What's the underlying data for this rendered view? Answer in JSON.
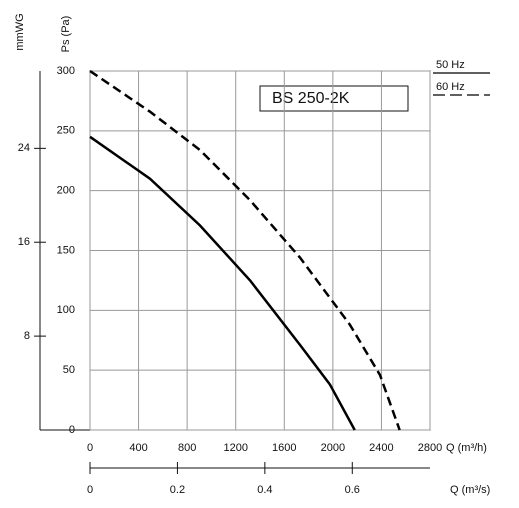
{
  "chart_data": {
    "type": "line",
    "title": "BS 250-2K",
    "y_label": "Ps (Pa)",
    "y2_label": "mmWG",
    "x_label": "Q (m³/h)",
    "x2_label": "Q (m³/s)",
    "series": [
      {
        "name": "50 Hz",
        "color": "#000000",
        "dash": false,
        "x": [
          0,
          494,
          905,
          1318,
          1730,
          1976,
          2180
        ],
        "values": [
          245,
          210,
          171,
          125,
          71,
          38,
          0
        ]
      },
      {
        "name": "60 Hz",
        "color": "#000000",
        "dash": true,
        "x": [
          0,
          494,
          905,
          1318,
          1730,
          2140,
          2388,
          2550
        ],
        "values": [
          300,
          266,
          234,
          192,
          144,
          88,
          46,
          0
        ]
      }
    ],
    "xlim": [
      0,
      2800
    ],
    "xticks": [
      0,
      400,
      800,
      1200,
      1600,
      2000,
      2400,
      2800
    ],
    "ylim": [
      0,
      300
    ],
    "yticks": [
      0,
      50,
      100,
      150,
      200,
      250,
      300
    ],
    "y2lim": [
      0,
      30.59
    ],
    "y2ticks": [
      8,
      16,
      24
    ],
    "x2lim": [
      0,
      0.7778
    ],
    "x2ticks": [
      0,
      0.2,
      0.4,
      0.6
    ],
    "grid": true
  }
}
